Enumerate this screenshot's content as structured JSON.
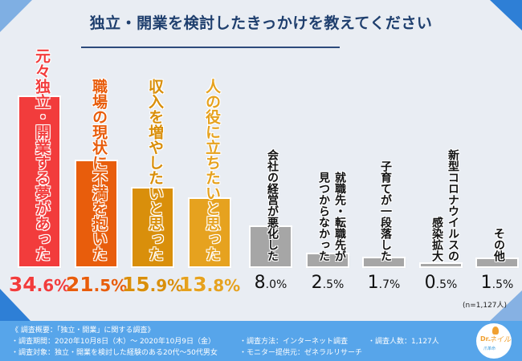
{
  "title": "独立・開業を検討したきっかけを教えてください",
  "chart_data": {
    "type": "bar",
    "title": "独立・開業を検討したきっかけを教えてください",
    "xlabel": "",
    "ylabel": "",
    "ylim": [
      0,
      40
    ],
    "grid": false,
    "categories": [
      "元々独立・開業する夢があった",
      "職場の現状に不満を抱いた",
      "収入を増やしたいと思った",
      "人の役に立ちたいと思った",
      "会社の経営が悪化した",
      "就職先・転職先が見つからなかった",
      "子育てが一段落した",
      "新型コロナウイルスの感染拡大",
      "その他"
    ],
    "values": [
      34.6,
      21.5,
      15.9,
      13.8,
      8.0,
      2.5,
      1.7,
      0.5,
      1.5
    ],
    "value_labels": [
      {
        "int": "34",
        "dec": ".6%"
      },
      {
        "int": "21",
        "dec": ".5%"
      },
      {
        "int": "15",
        "dec": ".9%"
      },
      {
        "int": "13",
        "dec": ".8%"
      },
      {
        "int": "8",
        "dec": ".0%"
      },
      {
        "int": "2",
        "dec": ".5%"
      },
      {
        "int": "1",
        "dec": ".7%"
      },
      {
        "int": "0",
        "dec": ".5%"
      },
      {
        "int": "1",
        "dec": ".5%"
      }
    ],
    "label_columns": [
      [
        "元々独立・開業する夢があった"
      ],
      [
        "職場の現状に不満を抱いた"
      ],
      [
        "収入を増やしたいと思った"
      ],
      [
        "人の役に立ちたいと思った"
      ],
      [
        "会社の経営が悪化した"
      ],
      [
        "就職先・転職先が",
        "見つからなかった"
      ],
      [
        "子育てが一段落した"
      ],
      [
        "新型コロナウイルスの",
        "感染拡大"
      ],
      [
        "その他"
      ]
    ],
    "colors": [
      "#f23c3c",
      "#e85d0c",
      "#d98f0b",
      "#e6a21f",
      "#a6a6a6",
      "#a6a6a6",
      "#a6a6a6",
      "#a6a6a6",
      "#a6a6a6"
    ],
    "text_colors": [
      "#f23c3c",
      "#e85d0c",
      "#d98f0b",
      "#e6a21f",
      "#111111",
      "#111111",
      "#111111",
      "#111111",
      "#111111"
    ],
    "sample_note": "(n=1,127人)"
  },
  "footer": {
    "heading": "《 調査概要：「独立・開業」に関する調査》",
    "period": "・調査期間：2020年10月8日（木）～ 2020年10月9日（金）",
    "target": "・調査対象：独立・開業を検討した経験のある20代～50代男女",
    "method": "・調査方法：インターネット調査",
    "provider": "・モニター提供元：ゼネラルリサーチ",
    "count": "・調査人数：1,127人"
  },
  "logo": {
    "dr": "Dr.",
    "name": "ネイル",
    "sub": "爪革命"
  }
}
